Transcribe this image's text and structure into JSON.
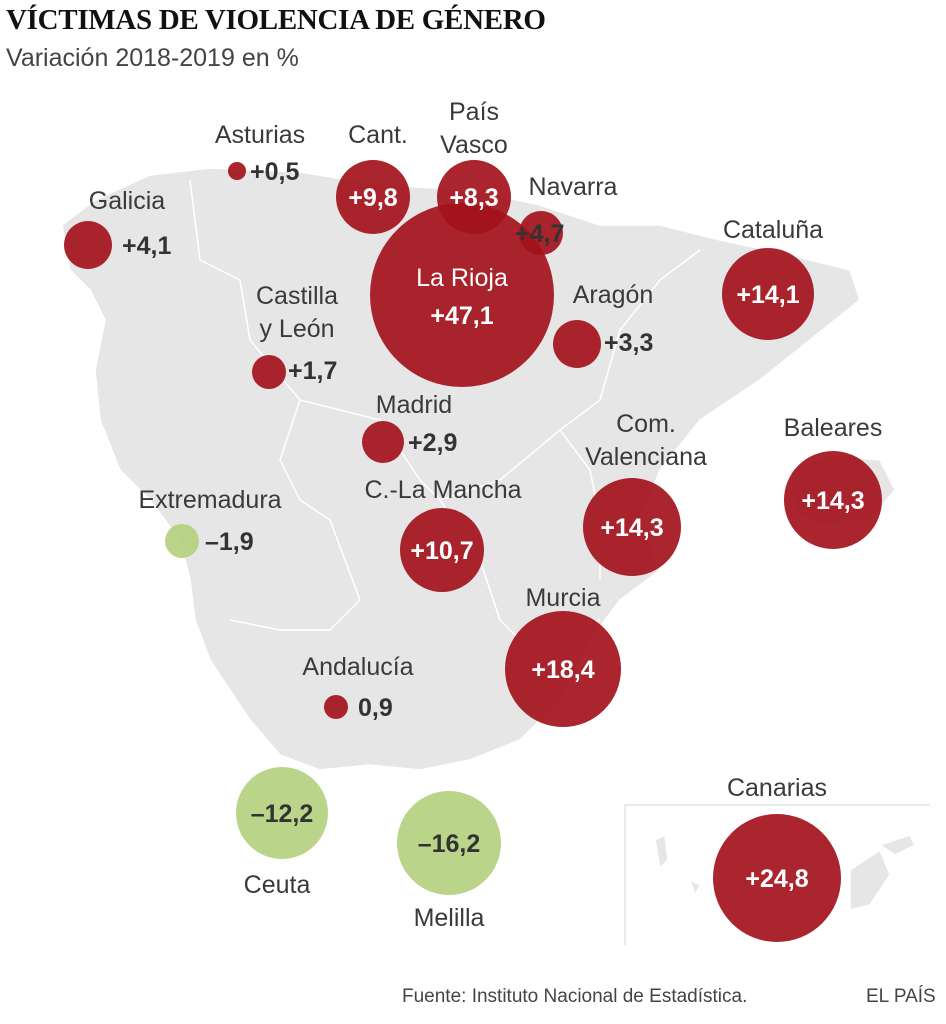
{
  "header": {
    "title": "VÍCTIMAS DE VIOLENCIA DE GÉNERO",
    "subtitle": "Variación 2018-2019 en %"
  },
  "colors": {
    "increase": "#a3121b",
    "decrease": "#b3cf7c",
    "land": "#e6e6e6"
  },
  "chart_data": {
    "type": "bubble-map",
    "title": "VÍCTIMAS DE VIOLENCIA DE GÉNERO",
    "subtitle": "Variación 2018-2019 en %",
    "unit": "%",
    "regions": [
      {
        "id": "asturias",
        "label": [
          "Asturias"
        ],
        "text": "+0,5",
        "value": 0.5
      },
      {
        "id": "cantabria",
        "label": [
          "Cant."
        ],
        "text": "+9,8",
        "value": 9.8
      },
      {
        "id": "pais-vasco",
        "label": [
          "País",
          "Vasco"
        ],
        "text": "+8,3",
        "value": 8.3
      },
      {
        "id": "navarra",
        "label": [
          "Navarra"
        ],
        "text": "+4,7",
        "value": 4.7
      },
      {
        "id": "la-rioja",
        "label": [
          "La Rioja"
        ],
        "text": "+47,1",
        "value": 47.1
      },
      {
        "id": "galicia",
        "label": [
          "Galicia"
        ],
        "text": "+4,1",
        "value": 4.1
      },
      {
        "id": "cataluna",
        "label": [
          "Cataluña"
        ],
        "text": "+14,1",
        "value": 14.1
      },
      {
        "id": "aragon",
        "label": [
          "Aragón"
        ],
        "text": "+3,3",
        "value": 3.3
      },
      {
        "id": "castilla-y-leon",
        "label": [
          "Castilla",
          "y León"
        ],
        "text": "+1,7",
        "value": 1.7
      },
      {
        "id": "madrid",
        "label": [
          "Madrid"
        ],
        "text": "+2,9",
        "value": 2.9
      },
      {
        "id": "com-valenciana",
        "label": [
          "Com.",
          "Valenciana"
        ],
        "text": "+14,3",
        "value": 14.3
      },
      {
        "id": "baleares",
        "label": [
          "Baleares"
        ],
        "text": "+14,3",
        "value": 14.3
      },
      {
        "id": "extremadura",
        "label": [
          "Extremadura"
        ],
        "text": "–1,9",
        "value": -1.9
      },
      {
        "id": "castilla-la-mancha",
        "label": [
          "C.-La Mancha"
        ],
        "text": "+10,7",
        "value": 10.7
      },
      {
        "id": "murcia",
        "label": [
          "Murcia"
        ],
        "text": "+18,4",
        "value": 18.4
      },
      {
        "id": "andalucia",
        "label": [
          "Andalucía"
        ],
        "text": "0,9",
        "value": 0.9
      },
      {
        "id": "ceuta",
        "label": [
          "Ceuta"
        ],
        "text": "–12,2",
        "value": -12.2
      },
      {
        "id": "melilla",
        "label": [
          "Melilla"
        ],
        "text": "–16,2",
        "value": -16.2
      },
      {
        "id": "canarias",
        "label": [
          "Canarias"
        ],
        "text": "+24,8",
        "value": 24.8
      }
    ]
  },
  "footer": {
    "source": "Fuente: Instituto Nacional de Estadística.",
    "brand": "EL PAÍS"
  }
}
